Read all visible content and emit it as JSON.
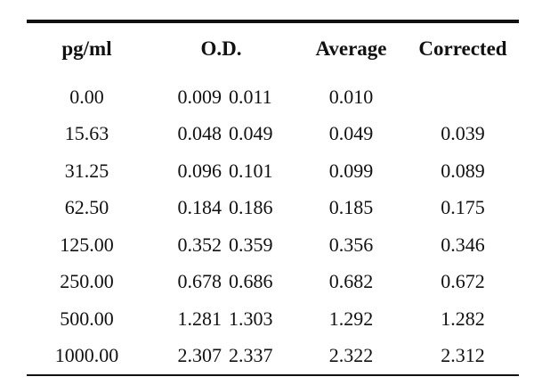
{
  "table": {
    "headers": {
      "concentration": "pg/ml",
      "od": "O.D.",
      "average": "Average",
      "corrected": "Corrected"
    },
    "rows": [
      {
        "conc": "0.00",
        "od1": "0.009",
        "od2": "0.011",
        "avg": "0.010",
        "cor": ""
      },
      {
        "conc": "15.63",
        "od1": "0.048",
        "od2": "0.049",
        "avg": "0.049",
        "cor": "0.039"
      },
      {
        "conc": "31.25",
        "od1": "0.096",
        "od2": "0.101",
        "avg": "0.099",
        "cor": "0.089"
      },
      {
        "conc": "62.50",
        "od1": "0.184",
        "od2": "0.186",
        "avg": "0.185",
        "cor": "0.175"
      },
      {
        "conc": "125.00",
        "od1": "0.352",
        "od2": "0.359",
        "avg": "0.356",
        "cor": "0.346"
      },
      {
        "conc": "250.00",
        "od1": "0.678",
        "od2": "0.686",
        "avg": "0.682",
        "cor": "0.672"
      },
      {
        "conc": "500.00",
        "od1": "1.281",
        "od2": "1.303",
        "avg": "1.292",
        "cor": "1.282"
      },
      {
        "conc": "1000.00",
        "od1": "2.307",
        "od2": "2.337",
        "avg": "2.322",
        "cor": "2.312"
      }
    ]
  }
}
